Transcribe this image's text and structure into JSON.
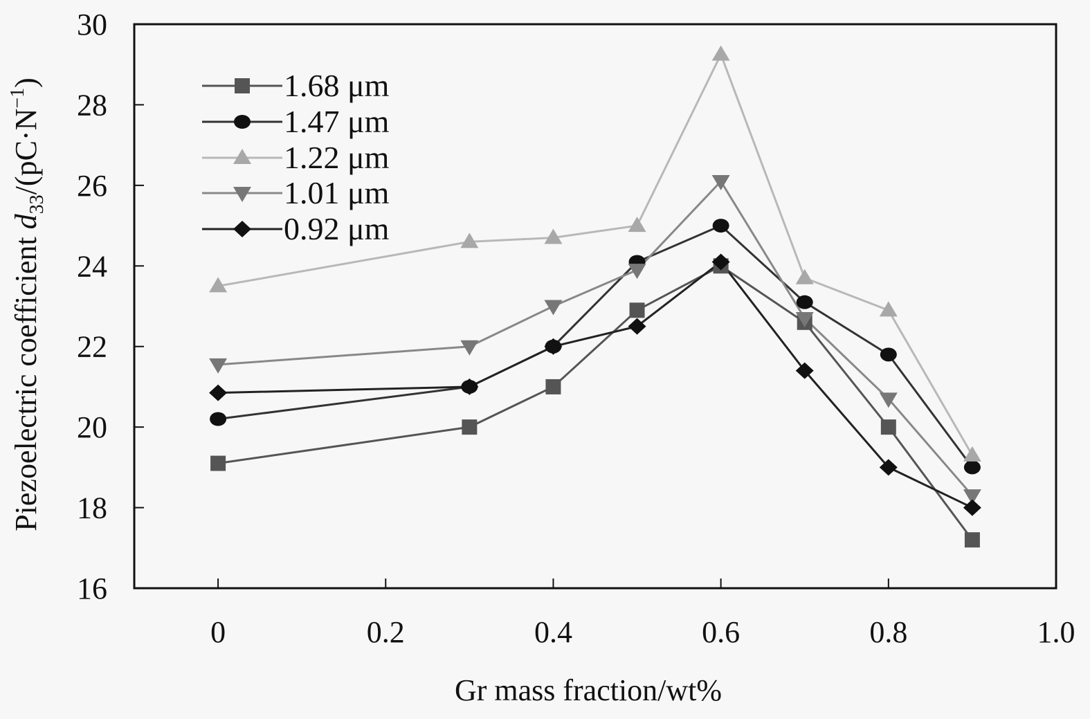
{
  "chart_data": {
    "type": "line",
    "title": "",
    "xlabel": "Gr mass fraction/wt%",
    "ylabel": {
      "prefix": "Piezoelectric coefficient ",
      "symbol": "d",
      "subscript": "33",
      "suffix": "/(pC·N",
      "superscript": "−1",
      "close": ")"
    },
    "xlim": [
      -0.1,
      1.0
    ],
    "ylim": [
      16,
      30
    ],
    "xticks": [
      0,
      0.2,
      0.4,
      0.6,
      0.8,
      1.0
    ],
    "xtick_labels": [
      "0",
      "0.2",
      "0.4",
      "0.6",
      "0.8",
      "1.0"
    ],
    "yticks": [
      16,
      18,
      20,
      22,
      24,
      26,
      28,
      30
    ],
    "ytick_labels": [
      "16",
      "18",
      "20",
      "22",
      "24",
      "26",
      "28",
      "30"
    ],
    "grid": false,
    "legend_position": "top-left",
    "x": [
      0,
      0.3,
      0.4,
      0.5,
      0.6,
      0.7,
      0.8,
      0.9
    ],
    "series": [
      {
        "name": "1.68 μm",
        "marker": "square",
        "color": "#555555",
        "line_color": "#555555",
        "values": [
          19.1,
          20.0,
          21.0,
          22.9,
          24.0,
          22.6,
          20.0,
          17.2
        ]
      },
      {
        "name": "1.47 μm",
        "marker": "circle",
        "color": "#111111",
        "line_color": "#333333",
        "values": [
          20.2,
          21.0,
          22.0,
          24.1,
          25.0,
          23.1,
          21.8,
          19.0
        ]
      },
      {
        "name": "1.22 μm",
        "marker": "triangle-up",
        "color": "#a8a8a8",
        "line_color": "#b8b8b8",
        "values": [
          23.5,
          24.6,
          24.7,
          25.0,
          29.25,
          23.7,
          22.9,
          19.3
        ]
      },
      {
        "name": "1.01 μm",
        "marker": "triangle-down",
        "color": "#777777",
        "line_color": "#888888",
        "values": [
          21.55,
          22.0,
          23.0,
          23.9,
          26.1,
          22.7,
          20.7,
          18.3
        ]
      },
      {
        "name": "0.92 μm",
        "marker": "diamond",
        "color": "#111111",
        "line_color": "#222222",
        "values": [
          20.85,
          21.0,
          22.0,
          22.5,
          24.1,
          21.4,
          19.0,
          18.0
        ]
      }
    ]
  }
}
